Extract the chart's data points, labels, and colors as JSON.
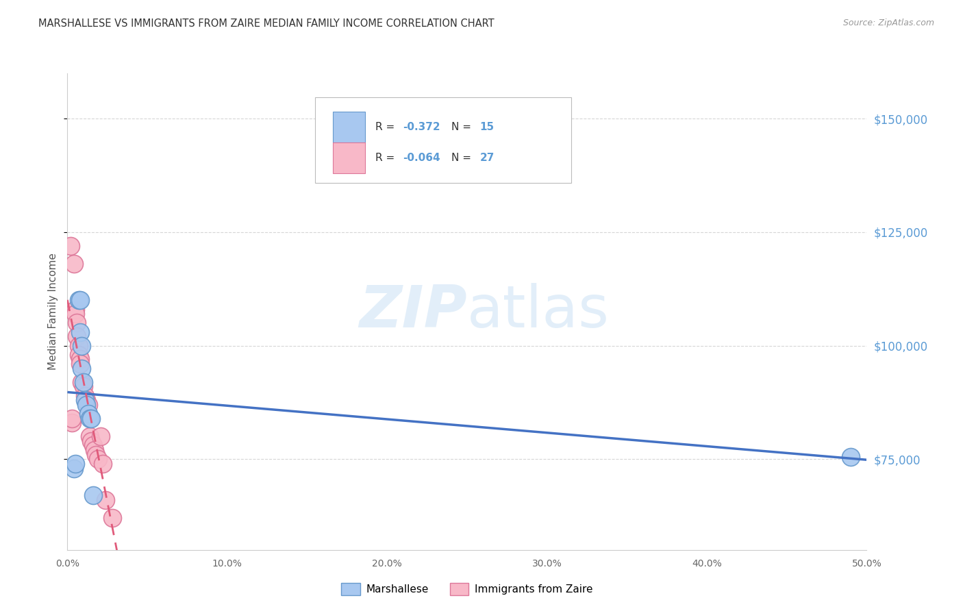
{
  "title": "MARSHALLESE VS IMMIGRANTS FROM ZAIRE MEDIAN FAMILY INCOME CORRELATION CHART",
  "source": "Source: ZipAtlas.com",
  "ylabel": "Median Family Income",
  "watermark": "ZIPatlas",
  "legend_blue_r": "-0.372",
  "legend_blue_n": "15",
  "legend_pink_r": "-0.064",
  "legend_pink_n": "27",
  "series1_label": "Marshallese",
  "series2_label": "Immigrants from Zaire",
  "ytick_labels": [
    "$75,000",
    "$100,000",
    "$125,000",
    "$150,000"
  ],
  "ytick_values": [
    75000,
    100000,
    125000,
    150000
  ],
  "blue_fill": "#A8C8F0",
  "blue_edge": "#6699CC",
  "pink_fill": "#F8B8C8",
  "pink_edge": "#DD7799",
  "trend_blue_color": "#4472C4",
  "trend_pink_color": "#E05A7A",
  "marshallese_x": [
    0.004,
    0.005,
    0.007,
    0.008,
    0.008,
    0.009,
    0.009,
    0.01,
    0.011,
    0.012,
    0.013,
    0.014,
    0.015,
    0.016,
    0.49
  ],
  "marshallese_y": [
    73000,
    74000,
    110000,
    110000,
    103000,
    100000,
    95000,
    92000,
    88000,
    87000,
    85000,
    84000,
    84000,
    67000,
    75500
  ],
  "zaire_x": [
    0.002,
    0.003,
    0.003,
    0.004,
    0.005,
    0.005,
    0.006,
    0.006,
    0.007,
    0.007,
    0.008,
    0.008,
    0.009,
    0.01,
    0.011,
    0.012,
    0.013,
    0.014,
    0.015,
    0.016,
    0.017,
    0.018,
    0.019,
    0.021,
    0.022,
    0.024,
    0.028
  ],
  "zaire_y": [
    122000,
    83000,
    84000,
    118000,
    108000,
    107000,
    105000,
    102000,
    100000,
    98000,
    97000,
    96000,
    92000,
    91000,
    89000,
    88000,
    87000,
    80000,
    79000,
    78000,
    77000,
    76000,
    75000,
    80000,
    74000,
    66000,
    62000
  ],
  "xmin": 0.0,
  "xmax": 0.5,
  "ymin": 55000,
  "ymax": 160000,
  "bg_color": "#FFFFFF",
  "grid_color": "#CCCCCC"
}
